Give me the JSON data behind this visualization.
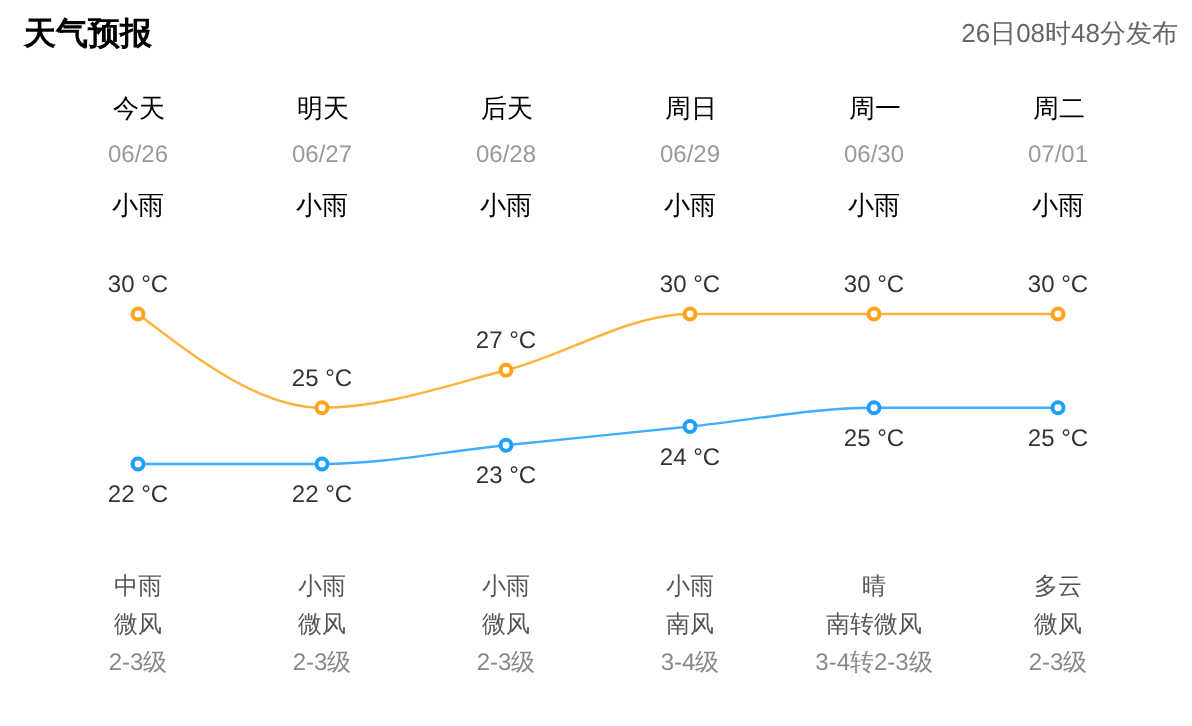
{
  "chart_data": {
    "type": "line",
    "title": "天气预报",
    "subtitle": "26日08时48分发布",
    "categories": [
      "今天",
      "明天",
      "后天",
      "周日",
      "周一",
      "周二"
    ],
    "series": [
      {
        "color": "#ffa41c",
        "values": [
          30,
          25,
          27,
          30,
          30,
          30
        ],
        "value_labels": [
          "30 °C",
          "25 °C",
          "27 °C",
          "30 °C",
          "30 °C",
          "30 °C"
        ]
      },
      {
        "color": "#1e9fff",
        "values": [
          22,
          22,
          23,
          24,
          25,
          25
        ],
        "value_labels": [
          "22 °C",
          "22 °C",
          "23 °C",
          "24 °C",
          "25 °C",
          "25 °C"
        ]
      }
    ],
    "marker": "circle",
    "annotations": [
      "06/26",
      "06/27",
      "06/28",
      "06/29",
      "06/30",
      "07/01",
      "小雨",
      "小雨",
      "小雨",
      "小雨",
      "小雨",
      "小雨",
      "中雨",
      "小雨",
      "小雨",
      "小雨",
      "晴",
      "多云",
      "微风",
      "微风",
      "微风",
      "南风",
      "南转微风",
      "微风",
      "2-3级",
      "2-3级",
      "2-3级",
      "3-4级",
      "3-4转2-3级",
      "2-3级"
    ]
  }
}
